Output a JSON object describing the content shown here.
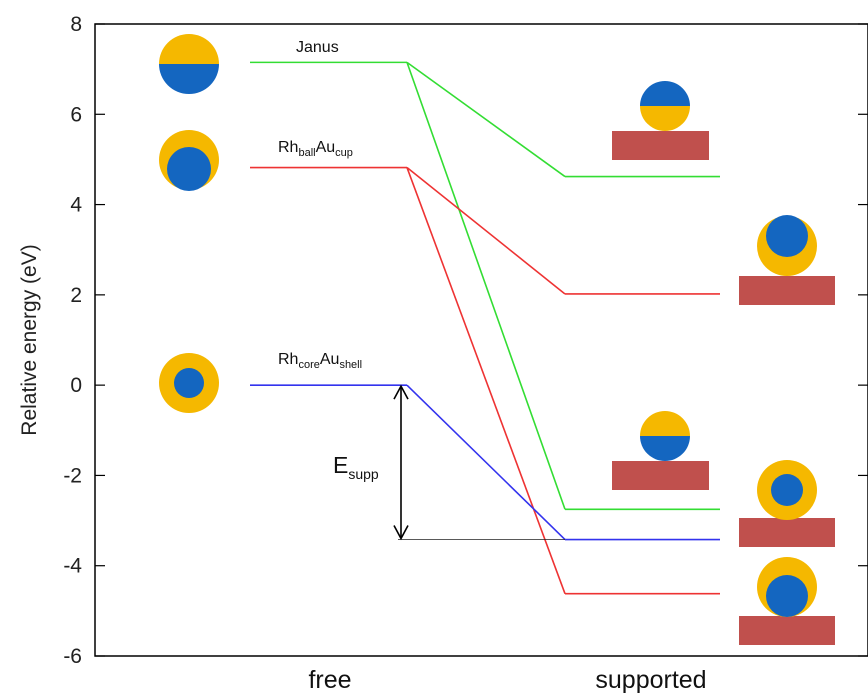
{
  "chart_data": {
    "type": "line",
    "ylabel": "Relative energy (eV)",
    "ylim": [
      -6,
      8
    ],
    "yticks": [
      "8",
      "6",
      "4",
      "2",
      "0",
      "-2",
      "-4",
      "-6"
    ],
    "ytick_values": [
      8,
      6,
      4,
      2,
      0,
      -2,
      -4,
      -6
    ],
    "categories": [
      "free",
      "supported"
    ],
    "colors": {
      "green": "#33dd33",
      "red": "#ee3333",
      "blue": "#3333ee",
      "gold": "#f5b800",
      "rh_blue": "#1466c0",
      "support": "#c0504d"
    },
    "free_levels": [
      {
        "id": "janus",
        "base": "Janus",
        "sub1": "",
        "base2": "",
        "sub2": "",
        "energy": 7.15,
        "color": "#33dd33"
      },
      {
        "id": "ballcup",
        "base": "Rh",
        "sub1": "ball",
        "base2": "Au",
        "sub2": "cup",
        "energy": 4.82,
        "color": "#ee3333"
      },
      {
        "id": "coreshell",
        "base": "Rh",
        "sub1": "core",
        "base2": "Au",
        "sub2": "shell",
        "energy": 0.0,
        "color": "#3333ee"
      }
    ],
    "supported_levels": [
      {
        "from": "janus",
        "energy": 4.62,
        "color": "#33dd33"
      },
      {
        "from": "janus",
        "energy": -2.75,
        "color": "#33dd33"
      },
      {
        "from": "ballcup",
        "energy": 2.02,
        "color": "#ee3333"
      },
      {
        "from": "ballcup",
        "energy": -4.62,
        "color": "#ee3333"
      },
      {
        "from": "coreshell",
        "energy": -3.42,
        "color": "#3333ee"
      }
    ],
    "annotation": {
      "base": "E",
      "sub": "supp",
      "from": 0.0,
      "to": -3.42
    }
  }
}
